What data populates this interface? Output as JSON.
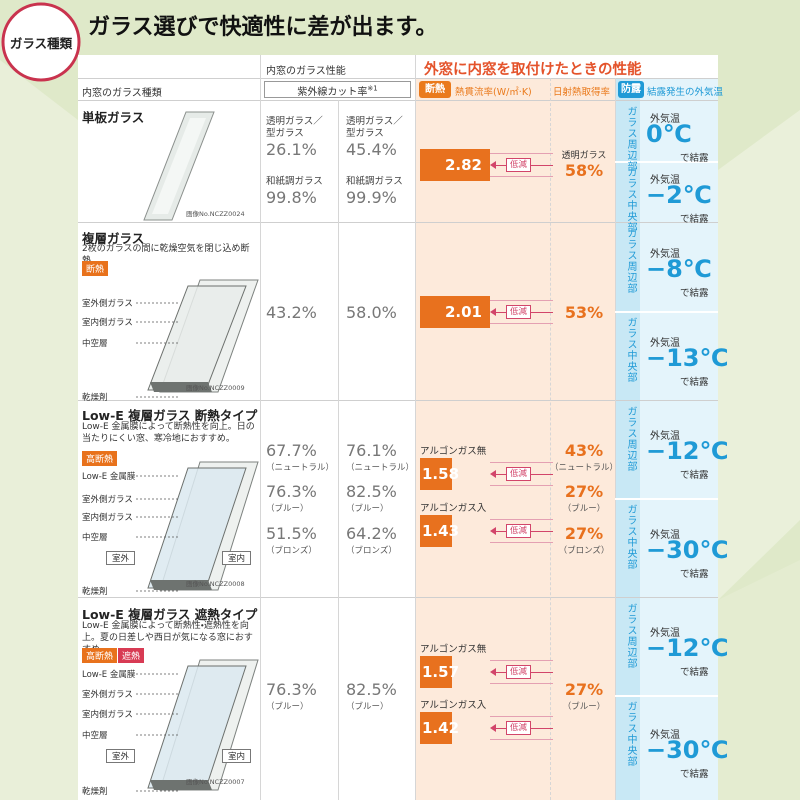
{
  "header": {
    "badge": "ガラス種類",
    "title": "ガラス選びで快適性に差が出ます。"
  },
  "columns": {
    "inner_performance": "内窓のガラス性能",
    "glass_type": "内窓のガラス種類",
    "uv_cut": "紫外線カット率",
    "uv_note": "※1",
    "outer_performance": "外窓に内窓を取付けたときの性能",
    "insulation_badge": "断熱",
    "u_value": "熱貫流率(W/㎡·K)",
    "solar_gain": "日射熱取得率",
    "dew_badge": "防露",
    "dew_temp": "結露発生の外気温"
  },
  "rows": [
    {
      "name": "単板ガラス",
      "image_no": "画像No.NCZZ0024",
      "uv": [
        [
          {
            "label": "透明ガラス／型ガラス",
            "value": "26.1%"
          },
          {
            "label": "透明ガラス／型ガラス",
            "value": "45.4%"
          }
        ],
        [
          {
            "label": "和紙調ガラス",
            "value": "99.8%"
          },
          {
            "label": "和紙調ガラス",
            "value": "99.9%"
          }
        ]
      ],
      "heat": [
        {
          "value": "2.82",
          "tag": "低減"
        }
      ],
      "solar": [
        {
          "label": "透明ガラス",
          "value": "58%"
        }
      ],
      "dew": [
        {
          "position": "ガラス周辺部",
          "prefix": "外気温",
          "value": "0℃",
          "suffix": "で結露"
        },
        {
          "position": "ガラス中央部",
          "prefix": "外気温",
          "value": "−2℃",
          "suffix": "で結露"
        }
      ]
    },
    {
      "name": "複層ガラス",
      "description": "2枚のガラスの間に乾燥空気を閉じ込め断熱。",
      "badges": [
        "断熱"
      ],
      "parts": [
        "室外側ガラス",
        "室内側ガラス",
        "中空層",
        "乾燥剤"
      ],
      "image_no": "画像No.NCZZ0009",
      "uv": [
        [
          {
            "value": "43.2%"
          },
          {
            "value": "58.0%"
          }
        ]
      ],
      "heat": [
        {
          "value": "2.01",
          "tag": "低減"
        }
      ],
      "solar": [
        {
          "value": "53%"
        }
      ],
      "dew": [
        {
          "position": "ガラス周辺部",
          "prefix": "外気温",
          "value": "−8℃",
          "suffix": "で結露"
        },
        {
          "position": "ガラス中央部",
          "prefix": "外気温",
          "value": "−13℃",
          "suffix": "で結露"
        }
      ]
    },
    {
      "name": "Low-E 複層ガラス 断熱タイプ",
      "description": "Low-E 金属膜によって断熱性を向上。日の当たりにくい窓、寒冷地におすすめ。",
      "badges": [
        "高断熱"
      ],
      "parts": [
        "Low-E 金属膜",
        "室外側ガラス",
        "室内側ガラス",
        "中空層",
        "室外",
        "室内",
        "乾燥剤"
      ],
      "image_no": "画像No.NCZZ0008",
      "uv": [
        [
          {
            "value": "67.7%",
            "note": "（ニュートラル）"
          },
          {
            "value": "76.1%",
            "note": "（ニュートラル）"
          }
        ],
        [
          {
            "value": "76.3%",
            "note": "（ブルー）"
          },
          {
            "value": "82.5%",
            "note": "（ブルー）"
          }
        ],
        [
          {
            "value": "51.5%",
            "note": "（ブロンズ）"
          },
          {
            "value": "64.2%",
            "note": "（ブロンズ）"
          }
        ]
      ],
      "heat": [
        {
          "label": "アルゴンガス無",
          "value": "1.58",
          "tag": "低減"
        },
        {
          "label": "アルゴンガス入",
          "value": "1.43",
          "tag": "低減"
        }
      ],
      "solar": [
        {
          "value": "43%",
          "note": "（ニュートラル）"
        },
        {
          "value": "27%",
          "note": "（ブルー）"
        },
        {
          "value": "27%",
          "note": "（ブロンズ）"
        }
      ],
      "dew": [
        {
          "position": "ガラス周辺部",
          "prefix": "外気温",
          "value": "−12℃",
          "suffix": "で結露"
        },
        {
          "position": "ガラス中央部",
          "prefix": "外気温",
          "value": "−30℃",
          "suffix": "で結露"
        }
      ]
    },
    {
      "name": "Low-E 複層ガラス 遮熱タイプ",
      "description": "Low-E 金属膜によって断熱性・遮熱性を向上。夏の日差しや西日が気になる窓におすすめ。",
      "badges": [
        "高断熱",
        "遮熱"
      ],
      "parts": [
        "Low-E 金属膜",
        "室外側ガラス",
        "室内側ガラス",
        "中空層",
        "室外",
        "室内",
        "乾燥剤"
      ],
      "image_no": "画像No.NCZZ0007",
      "uv": [
        [
          {
            "value": "76.3%",
            "note": "（ブルー）"
          },
          {
            "value": "82.5%",
            "note": "（ブルー）"
          }
        ]
      ],
      "heat": [
        {
          "label": "アルゴンガス無",
          "value": "1.57",
          "tag": "低減"
        },
        {
          "label": "アルゴンガス入",
          "value": "1.42",
          "tag": "低減"
        }
      ],
      "solar": [
        {
          "value": "27%",
          "note": "（ブルー）"
        }
      ],
      "dew": [
        {
          "position": "ガラス周辺部",
          "prefix": "外気温",
          "value": "−12℃",
          "suffix": "で結露"
        },
        {
          "position": "ガラス中央部",
          "prefix": "外気温",
          "value": "−30℃",
          "suffix": "で結露"
        }
      ]
    }
  ]
}
